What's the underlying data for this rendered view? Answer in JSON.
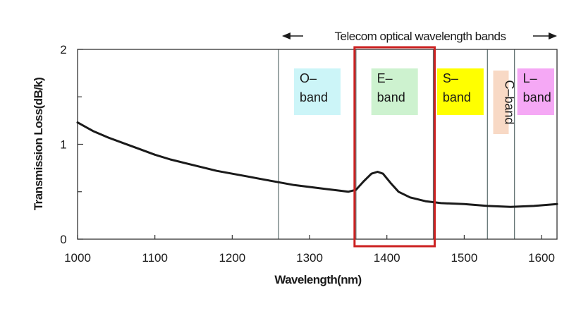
{
  "chart_data": {
    "type": "line",
    "title": "",
    "xlabel": "Wavelength(nm)",
    "ylabel": "Transmission Loss(dB/k)",
    "xlim": [
      1000,
      1620
    ],
    "ylim": [
      0,
      2
    ],
    "x_ticks": [
      1000,
      1100,
      1200,
      1300,
      1400,
      1500,
      1600
    ],
    "y_ticks": [
      0,
      1,
      2
    ],
    "grid": false,
    "series": [
      {
        "name": "",
        "color": "#1a1a1a",
        "points": [
          [
            1000,
            1.23
          ],
          [
            1020,
            1.14
          ],
          [
            1040,
            1.07
          ],
          [
            1060,
            1.01
          ],
          [
            1080,
            0.95
          ],
          [
            1100,
            0.89
          ],
          [
            1120,
            0.84
          ],
          [
            1140,
            0.8
          ],
          [
            1160,
            0.76
          ],
          [
            1180,
            0.72
          ],
          [
            1200,
            0.69
          ],
          [
            1220,
            0.66
          ],
          [
            1240,
            0.63
          ],
          [
            1260,
            0.6
          ],
          [
            1280,
            0.57
          ],
          [
            1300,
            0.55
          ],
          [
            1320,
            0.53
          ],
          [
            1340,
            0.51
          ],
          [
            1350,
            0.5
          ],
          [
            1360,
            0.52
          ],
          [
            1370,
            0.61
          ],
          [
            1380,
            0.69
          ],
          [
            1388,
            0.71
          ],
          [
            1395,
            0.69
          ],
          [
            1405,
            0.59
          ],
          [
            1415,
            0.5
          ],
          [
            1430,
            0.44
          ],
          [
            1450,
            0.4
          ],
          [
            1470,
            0.38
          ],
          [
            1500,
            0.37
          ],
          [
            1530,
            0.35
          ],
          [
            1560,
            0.34
          ],
          [
            1590,
            0.35
          ],
          [
            1620,
            0.37
          ]
        ]
      }
    ],
    "telecom_bands_label": "Telecom optical wavelength bands",
    "band_dividers_nm": [
      1260,
      1360,
      1460,
      1530,
      1565
    ],
    "highlight": {
      "from_nm": 1360,
      "to_nm": 1460,
      "color": "#cc2222"
    },
    "bands": [
      {
        "name": "O-band",
        "line1": "O–",
        "line2": "band",
        "color": "#ccf5f8",
        "from_nm": 1260,
        "to_nm": 1360
      },
      {
        "name": "E-band",
        "line1": "E–",
        "line2": "band",
        "color": "#cdf2cf",
        "from_nm": 1360,
        "to_nm": 1460
      },
      {
        "name": "S-band",
        "line1": "S–",
        "line2": "band",
        "color": "#ffff00",
        "from_nm": 1460,
        "to_nm": 1530
      },
      {
        "name": "C-band",
        "text": "C–band",
        "color": "#f8d9c5",
        "from_nm": 1530,
        "to_nm": 1565
      },
      {
        "name": "L-band",
        "line1": "L–",
        "line2": "band",
        "color": "#f5a8f5",
        "from_nm": 1565,
        "to_nm": 1620
      }
    ]
  }
}
